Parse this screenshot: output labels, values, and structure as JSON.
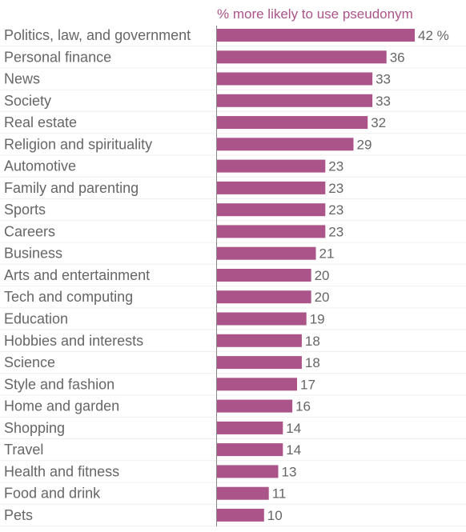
{
  "chart_data": {
    "type": "bar",
    "orientation": "horizontal",
    "title": "% more likely to use pseudonym",
    "value_suffix_first": " %",
    "bar_color": "#ab5489",
    "title_color": "#ab5489",
    "grid": true,
    "categories": [
      "Politics, law, and government",
      "Personal finance",
      "News",
      "Society",
      "Real estate",
      "Religion and spirituality",
      "Automotive",
      "Family and parenting",
      "Sports",
      "Careers",
      "Business",
      "Arts and entertainment",
      "Tech and computing",
      "Education",
      "Hobbies and interests",
      "Science",
      "Style and fashion",
      "Home and garden",
      "Shopping",
      "Travel",
      "Health and fitness",
      "Food and drink",
      "Pets"
    ],
    "values": [
      42,
      36,
      33,
      33,
      32,
      29,
      23,
      23,
      23,
      23,
      21,
      20,
      20,
      19,
      18,
      18,
      17,
      16,
      14,
      14,
      13,
      11,
      10
    ],
    "xlim": [
      0,
      42
    ]
  }
}
